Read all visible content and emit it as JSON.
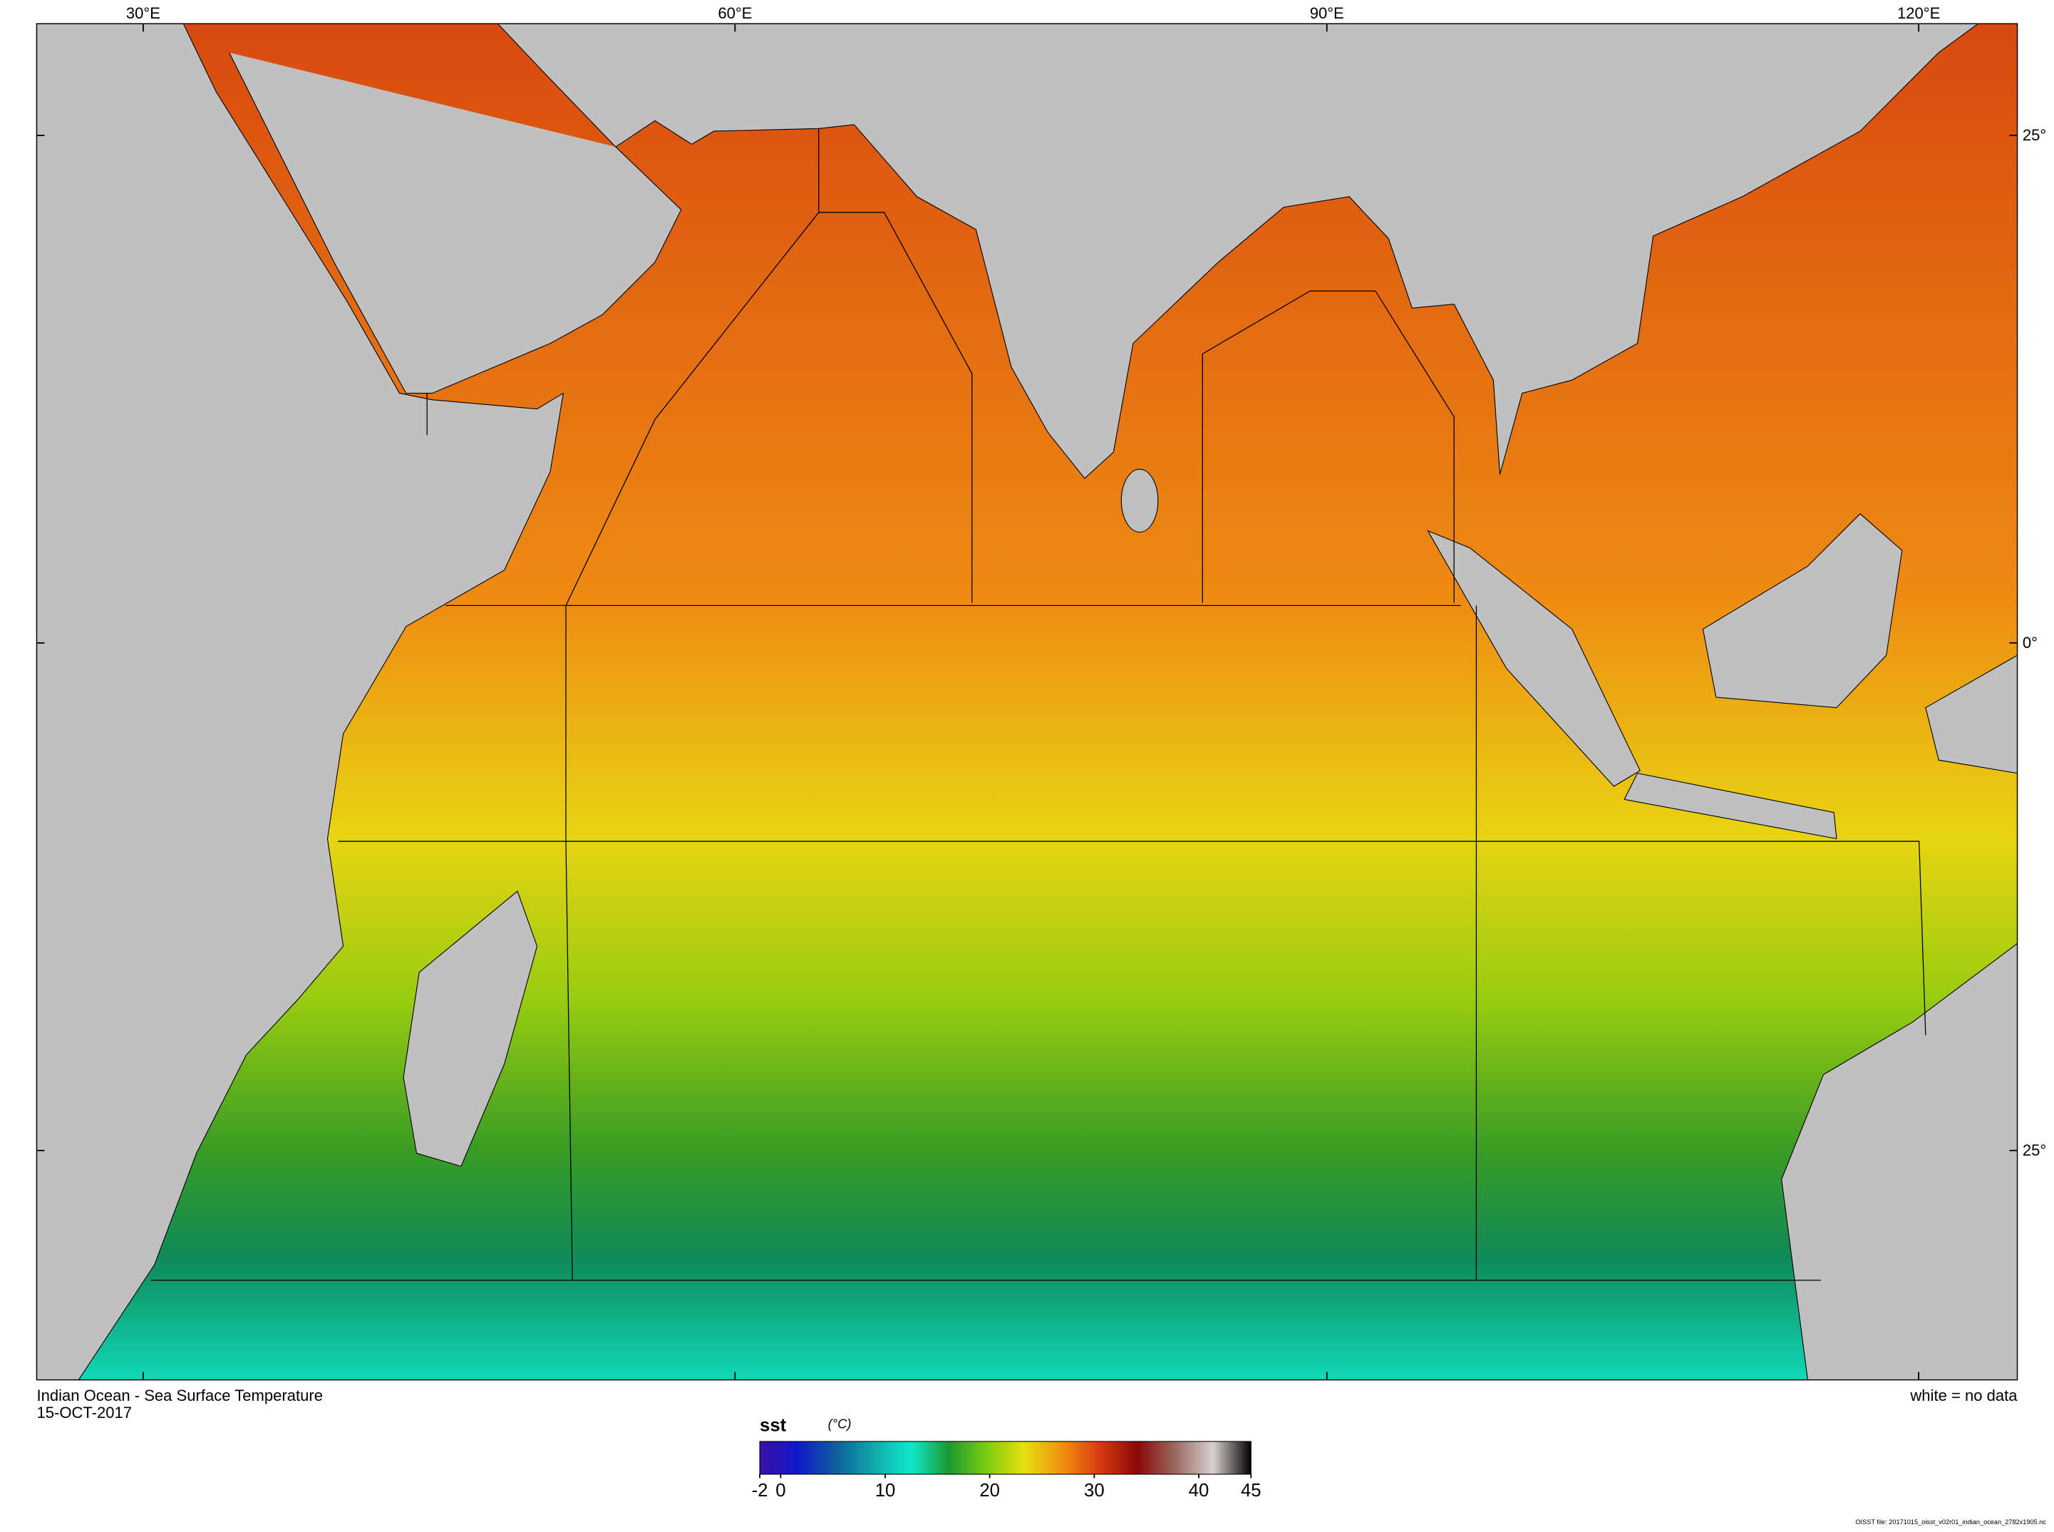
{
  "map": {
    "title": "Indian Ocean - Sea Surface Temperature",
    "date": "15-OCT-2017",
    "note": "white = no data",
    "file": "OISST file: 20171015_oisst_v02r01_indian_ocean_2782x1905.nc",
    "lonlim": [
      24.6,
      125
    ],
    "latlim": [
      30.5,
      -36.3
    ],
    "lonticks": [
      {
        "value": 30,
        "label": "30°E"
      },
      {
        "value": 60,
        "label": "60°E"
      },
      {
        "value": 90,
        "label": "90°E"
      },
      {
        "value": 120,
        "label": "120°E"
      }
    ],
    "latticks": [
      {
        "value": 25,
        "label": "25°"
      },
      {
        "value": 0,
        "label": "0°"
      },
      {
        "value": -25,
        "label": "25°"
      }
    ],
    "colorbar": {
      "name": "sst",
      "unit": "(°C)",
      "range": [
        -2,
        45
      ],
      "ticks": [
        -2,
        0,
        10,
        20,
        30,
        40,
        45
      ],
      "colors": [
        "#3a10a8",
        "#1018c8",
        "#0f5e9e",
        "#0fa8a8",
        "#10e8cc",
        "#1a9a30",
        "#7ccc10",
        "#e8e010",
        "#f09010",
        "#d83a10",
        "#8a0808",
        "#9a6a60",
        "#d8d0d0",
        "#000000"
      ]
    }
  }
}
